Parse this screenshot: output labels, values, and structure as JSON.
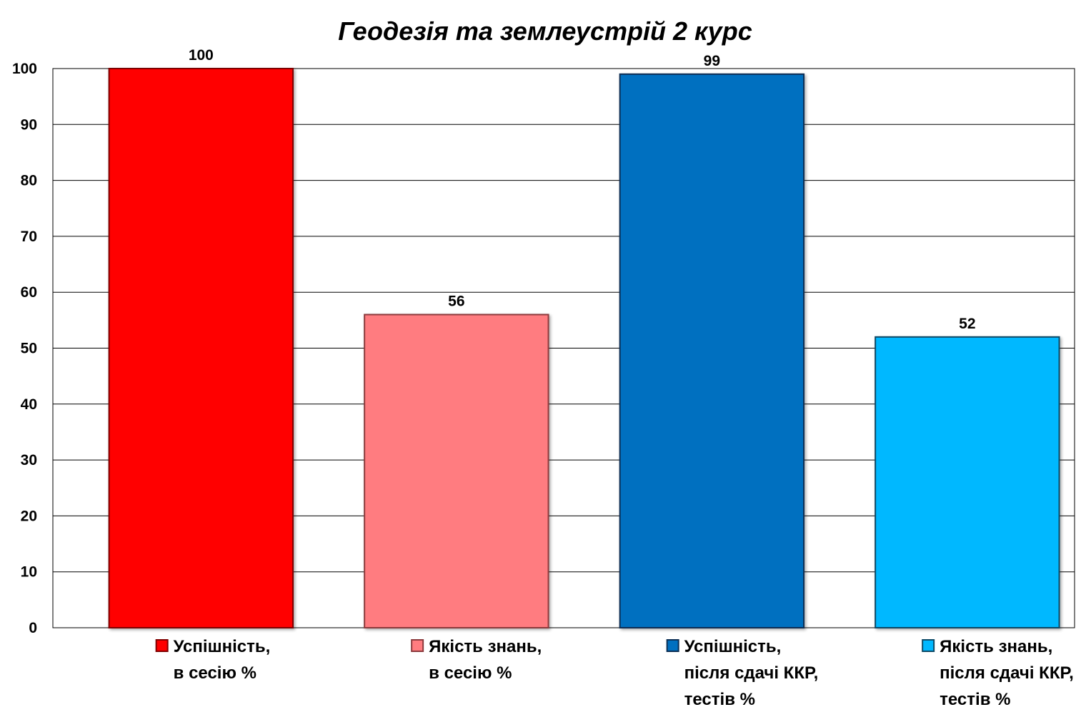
{
  "chart_data": {
    "type": "bar",
    "title": "Геодезія та землеустрій 2 курс",
    "xlabel": "",
    "ylabel": "",
    "ylim": [
      0,
      100
    ],
    "y_ticks": [
      0,
      10,
      20,
      30,
      40,
      50,
      60,
      70,
      80,
      90,
      100
    ],
    "grid": true,
    "legend_position": "bottom",
    "series": [
      {
        "name_lines": [
          "Успішність,",
          "в сесію %"
        ],
        "value": 100,
        "color": "#FF0000",
        "border_color": "#7F0000"
      },
      {
        "name_lines": [
          "Якість знань,",
          "в сесію %"
        ],
        "value": 56,
        "color": "#FF7C80",
        "border_color": "#8C3A3D"
      },
      {
        "name_lines": [
          "Успішність,",
          "після сдачі ККР,",
          "тестів %"
        ],
        "value": 99,
        "color": "#0070C0",
        "border_color": "#0B2F55"
      },
      {
        "name_lines": [
          "Якість знань,",
          "після сдачі ККР,",
          "тестів %"
        ],
        "value": 52,
        "color": "#00B8FF",
        "border_color": "#0E4A66"
      }
    ]
  }
}
